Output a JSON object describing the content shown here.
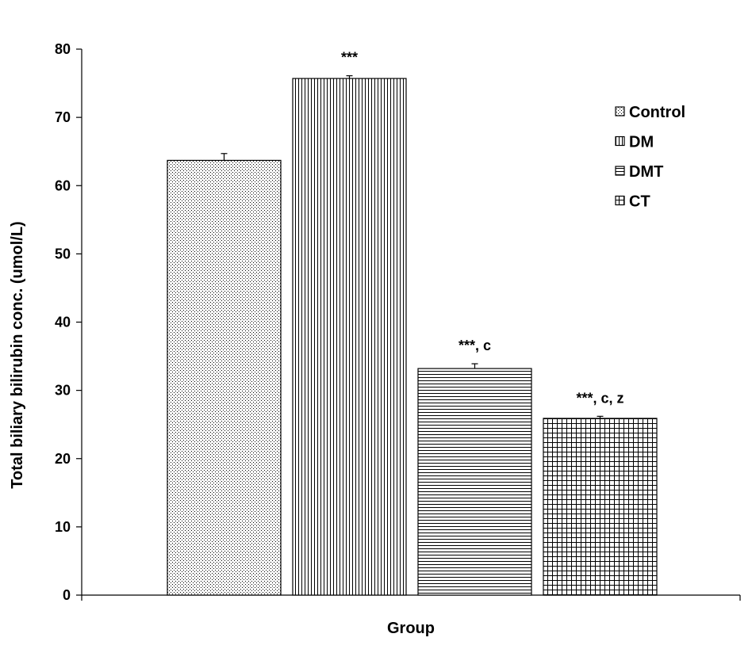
{
  "chart_data": {
    "type": "bar",
    "title": "",
    "xlabel": "Group",
    "ylabel": "Total biliary bilirubin conc. (umol/L)",
    "ylim": [
      0,
      80
    ],
    "yticks": [
      0,
      10,
      20,
      30,
      40,
      50,
      60,
      70,
      80
    ],
    "legend_position": "top-right",
    "grid": false,
    "series": [
      {
        "name": "Control",
        "value": 63.7,
        "error": 1.0,
        "annotation": "",
        "pattern": "dots"
      },
      {
        "name": "DM",
        "value": 75.7,
        "error": 0.4,
        "annotation": "***",
        "pattern": "vertical"
      },
      {
        "name": "DMT",
        "value": 33.2,
        "error": 0.7,
        "annotation": "***, c",
        "pattern": "horizontal"
      },
      {
        "name": "CT",
        "value": 25.9,
        "error": 0.3,
        "annotation": "***, c, z",
        "pattern": "grid"
      }
    ]
  }
}
